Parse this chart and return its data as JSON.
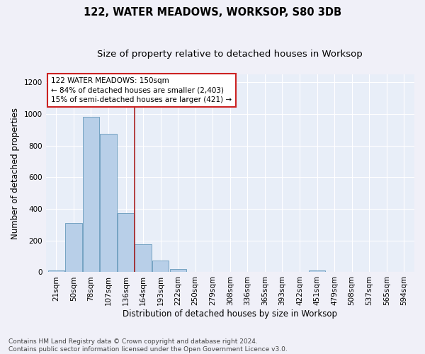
{
  "title": "122, WATER MEADOWS, WORKSOP, S80 3DB",
  "subtitle": "Size of property relative to detached houses in Worksop",
  "xlabel": "Distribution of detached houses by size in Worksop",
  "ylabel": "Number of detached properties",
  "categories": [
    "21sqm",
    "50sqm",
    "78sqm",
    "107sqm",
    "136sqm",
    "164sqm",
    "193sqm",
    "222sqm",
    "250sqm",
    "279sqm",
    "308sqm",
    "336sqm",
    "365sqm",
    "393sqm",
    "422sqm",
    "451sqm",
    "479sqm",
    "508sqm",
    "537sqm",
    "565sqm",
    "594sqm"
  ],
  "values": [
    10,
    310,
    980,
    875,
    375,
    175,
    75,
    22,
    3,
    1,
    1,
    1,
    0,
    0,
    0,
    10,
    0,
    0,
    0,
    0,
    0
  ],
  "bar_color": "#b8cfe8",
  "bar_edge_color": "#6699bb",
  "vline_color": "#aa2222",
  "annotation_text": "122 WATER MEADOWS: 150sqm\n← 84% of detached houses are smaller (2,403)\n15% of semi-detached houses are larger (421) →",
  "annotation_box_color": "#ffffff",
  "annotation_box_edge_color": "#cc2222",
  "ylim": [
    0,
    1250
  ],
  "yticks": [
    0,
    200,
    400,
    600,
    800,
    1000,
    1200
  ],
  "background_color": "#e8eef8",
  "grid_color": "#ffffff",
  "footer": "Contains HM Land Registry data © Crown copyright and database right 2024.\nContains public sector information licensed under the Open Government Licence v3.0.",
  "title_fontsize": 10.5,
  "subtitle_fontsize": 9.5,
  "axis_label_fontsize": 8.5,
  "tick_fontsize": 7.5,
  "annotation_fontsize": 7.5,
  "footer_fontsize": 6.5
}
